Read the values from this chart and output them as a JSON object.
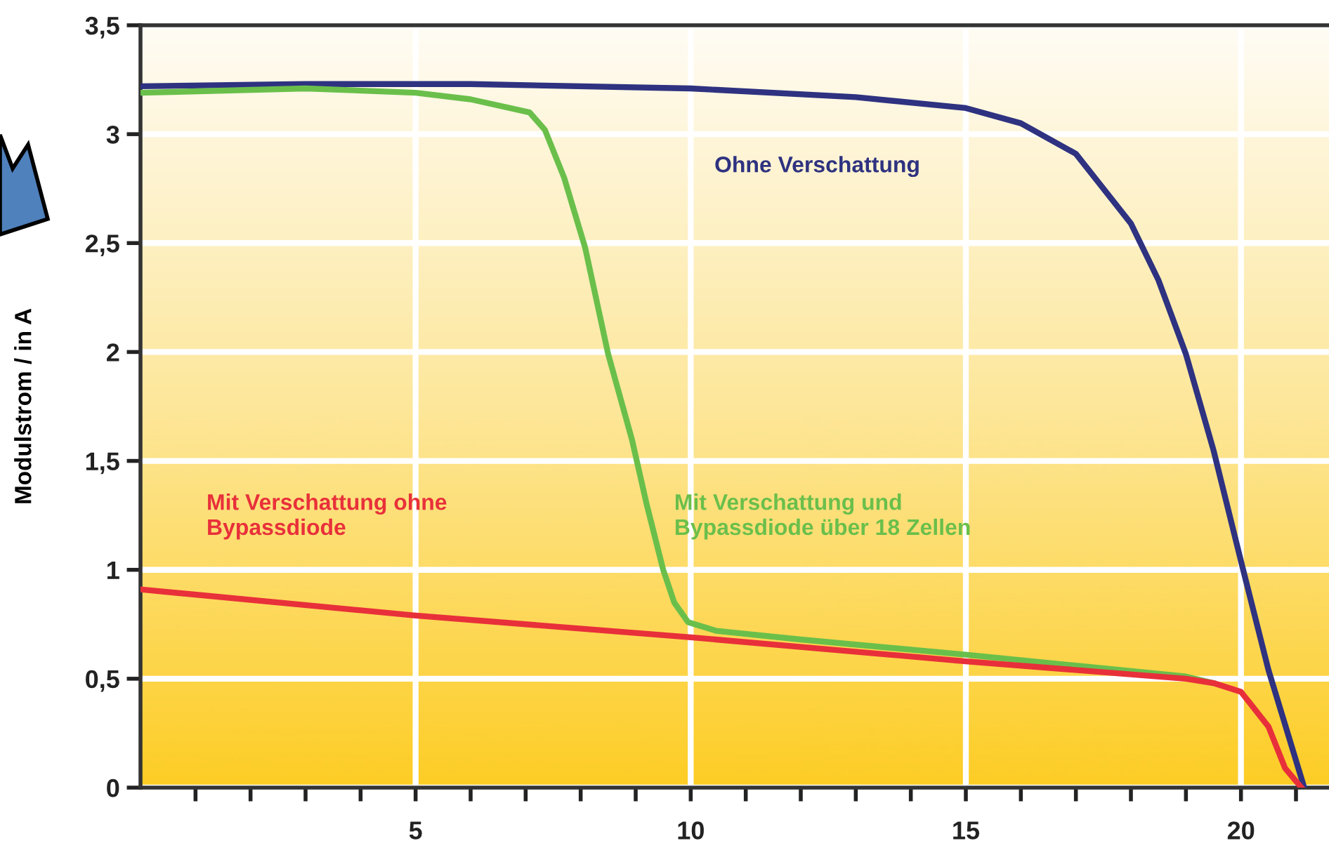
{
  "chart_data": {
    "type": "line",
    "ylabel": "Modulstrom / in A",
    "xlim": [
      0,
      21.6
    ],
    "ylim": [
      0,
      3.5
    ],
    "xticks": [
      {
        "value": 1,
        "label": null
      },
      {
        "value": 2,
        "label": null
      },
      {
        "value": 3,
        "label": null
      },
      {
        "value": 4,
        "label": null
      },
      5,
      {
        "value": 6,
        "label": null
      },
      {
        "value": 7,
        "label": null
      },
      {
        "value": 8,
        "label": null
      },
      {
        "value": 9,
        "label": null
      },
      10,
      {
        "value": 11,
        "label": null
      },
      {
        "value": 12,
        "label": null
      },
      {
        "value": 13,
        "label": null
      },
      {
        "value": 14,
        "label": null
      },
      15,
      {
        "value": 16,
        "label": null
      },
      {
        "value": 17,
        "label": null
      },
      {
        "value": 18,
        "label": null
      },
      {
        "value": 19,
        "label": null
      },
      20,
      {
        "value": 21,
        "label": null
      }
    ],
    "yticks": [
      0,
      {
        "value": 0.5,
        "label": "0,5"
      },
      1,
      {
        "value": 1.5,
        "label": "1,5"
      },
      2,
      {
        "value": 2.5,
        "label": "2,5"
      },
      3,
      {
        "value": 3.5,
        "label": "3,5"
      }
    ],
    "grid": true,
    "legend": false,
    "marker": "none",
    "line_style": "solid",
    "series": [
      {
        "name": "Ohne Verschattung",
        "color": "#2e3280",
        "x": [
          0,
          3,
          6,
          10,
          13,
          15,
          16,
          17,
          18,
          18.5,
          19,
          19.5,
          20,
          20.5,
          21.15
        ],
        "values": [
          3.22,
          3.23,
          3.23,
          3.21,
          3.17,
          3.12,
          3.05,
          2.91,
          2.59,
          2.33,
          1.99,
          1.55,
          1.04,
          0.54,
          0
        ]
      },
      {
        "name": "Mit Verschattung und\nBypassdiode über 18 Zellen",
        "color": "#6abf4b",
        "x": [
          0,
          3,
          5,
          6,
          7.07,
          7.35,
          7.7,
          8.08,
          8.5,
          8.93,
          9.2,
          9.5,
          9.7,
          9.95,
          10.46,
          12,
          15,
          17,
          19,
          19.5
        ],
        "values": [
          3.19,
          3.21,
          3.19,
          3.16,
          3.1,
          3.02,
          2.8,
          2.48,
          1.99,
          1.6,
          1.3,
          1.0,
          0.85,
          0.76,
          0.72,
          0.68,
          0.61,
          0.56,
          0.51,
          0.48
        ]
      },
      {
        "name": "Mit Verschattung ohne\nBypassdiode",
        "color": "#e8303a",
        "x": [
          0,
          5,
          10,
          15,
          19,
          19.5,
          20,
          20.5,
          20.8,
          21.1
        ],
        "values": [
          0.91,
          0.79,
          0.69,
          0.58,
          0.5,
          0.48,
          0.44,
          0.28,
          0.09,
          0
        ]
      }
    ]
  }
}
